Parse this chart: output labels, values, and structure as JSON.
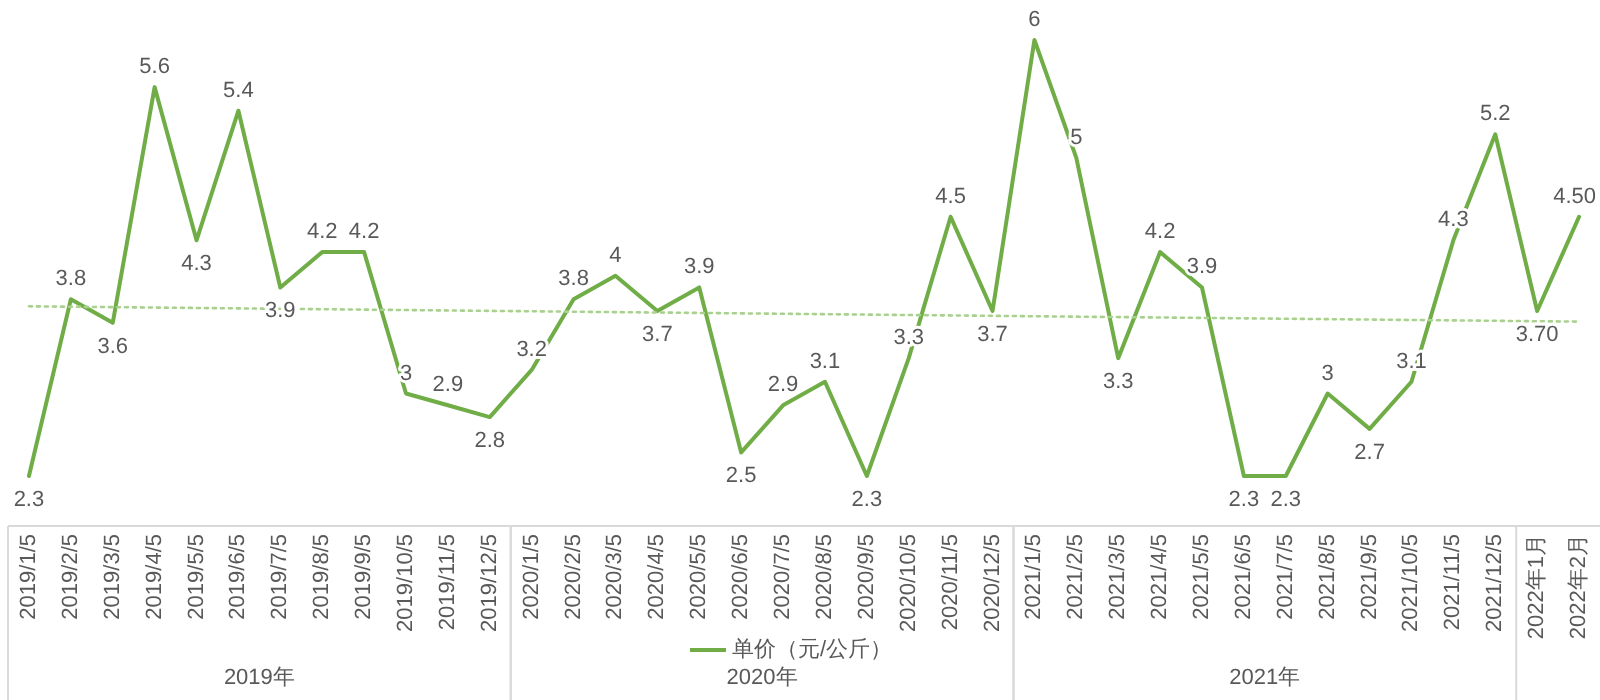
{
  "chart_data": {
    "type": "line",
    "categories": [
      "2019/1/5",
      "2019/2/5",
      "2019/3/5",
      "2019/4/5",
      "2019/5/5",
      "2019/6/5",
      "2019/7/5",
      "2019/8/5",
      "2019/9/5",
      "2019/10/5",
      "2019/11/5",
      "2019/12/5",
      "2020/1/5",
      "2020/2/5",
      "2020/3/5",
      "2020/4/5",
      "2020/5/5",
      "2020/6/5",
      "2020/7/5",
      "2020/8/5",
      "2020/9/5",
      "2020/10/5",
      "2020/11/5",
      "2020/12/5",
      "2021/1/5",
      "2021/2/5",
      "2021/3/5",
      "2021/4/5",
      "2021/5/5",
      "2021/6/5",
      "2021/7/5",
      "2021/8/5",
      "2021/9/5",
      "2021/10/5",
      "2021/11/5",
      "2021/12/5",
      "2022年1月",
      "2022年2月"
    ],
    "series": [
      {
        "name": "单价（元/公斤）",
        "color": "#70ad47",
        "values": [
          2.3,
          3.8,
          3.6,
          5.6,
          4.3,
          5.4,
          3.9,
          4.2,
          4.2,
          3,
          2.9,
          2.8,
          3.2,
          3.8,
          4,
          3.7,
          3.9,
          2.5,
          2.9,
          3.1,
          2.3,
          3.3,
          4.5,
          3.7,
          6,
          5,
          3.3,
          4.2,
          3.9,
          2.3,
          2.3,
          3,
          2.7,
          3.1,
          4.3,
          5.2,
          3.7,
          4.5
        ],
        "value_labels": [
          "2.3",
          "3.8",
          "3.6",
          "5.6",
          "4.3",
          "5.4",
          "3.9",
          "4.2",
          "4.2",
          "3",
          "2.9",
          "2.8",
          "3.2",
          "3.8",
          "4",
          "3.7",
          "3.9",
          "2.5",
          "2.9",
          "3.1",
          "2.3",
          "3.3",
          "4.5",
          "3.7",
          "6",
          "5",
          "3.3",
          "4.2",
          "3.9",
          "2.3",
          "2.3",
          "3",
          "2.7",
          "3.1",
          "4.3",
          "5.2",
          "3.70",
          "4.50"
        ]
      },
      {
        "type": "line",
        "color": "#a9d18e",
        "line_style": "dotted",
        "x": [
          "2019/1/5",
          "2022年2月"
        ],
        "values": [
          3.74,
          3.61
        ]
      }
    ],
    "annotations": [
      "2019年",
      "2020年",
      "2021年"
    ],
    "legend": "bottom"
  }
}
